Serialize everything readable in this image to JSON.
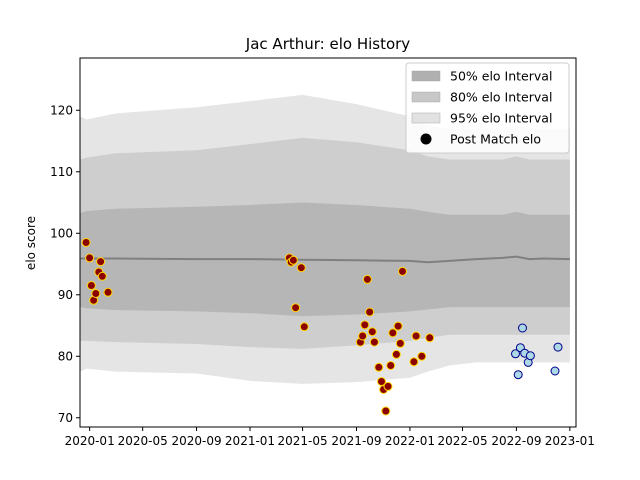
{
  "chart_data": {
    "type": "scatter",
    "title": "Jac Arthur: elo History",
    "xlabel": "",
    "ylabel": "elo score",
    "xlim": [
      "2019-12-10",
      "2023-01-15"
    ],
    "ylim": [
      68.5,
      128.5
    ],
    "x_ticks": [
      "2020-01",
      "2020-05",
      "2020-09",
      "2021-01",
      "2021-05",
      "2021-09",
      "2022-01",
      "2022-05",
      "2022-09",
      "2023-01"
    ],
    "y_ticks": [
      70,
      80,
      90,
      100,
      110,
      120
    ],
    "grid": false,
    "legend_position": "top-right",
    "legend": [
      {
        "label": "50% elo Interval",
        "kind": "band",
        "color": "#b0b0b0"
      },
      {
        "label": "80% elo Interval",
        "kind": "band",
        "color": "#c8c8c8"
      },
      {
        "label": "95% elo Interval",
        "kind": "band",
        "color": "#e2e2e2"
      },
      {
        "label": "Post Match elo",
        "kind": "marker",
        "color": "#000000"
      }
    ],
    "colors": {
      "band_50": "#b0b0b0",
      "band_80": "#c8c8c8",
      "band_95": "#e2e2e2",
      "mean_line": "#808080",
      "point_past_fill": "#8b0000",
      "point_past_edge": "#ffd700",
      "point_recent_fill": "#add8e6",
      "point_recent_edge": "#00008b"
    },
    "bands": {
      "x": [
        "2019-12-10",
        "2019-12-25",
        "2020-03-01",
        "2020-09-01",
        "2021-01-01",
        "2021-05-01",
        "2021-09-01",
        "2022-01-01",
        "2022-02-10",
        "2022-04-01",
        "2022-06-01",
        "2022-08-01",
        "2022-09-01",
        "2022-10-01",
        "2022-11-01",
        "2023-01-01"
      ],
      "mean": [
        95.9,
        95.9,
        95.9,
        95.8,
        95.8,
        95.7,
        95.6,
        95.5,
        95.3,
        95.5,
        95.8,
        96.0,
        96.2,
        95.8,
        95.9,
        95.8
      ],
      "p50_upper": [
        103.3,
        103.6,
        104.0,
        104.3,
        104.6,
        105.0,
        104.6,
        104.0,
        103.5,
        103.0,
        103.0,
        103.0,
        103.5,
        103.0,
        103.0,
        103.0
      ],
      "p50_lower": [
        88.0,
        87.8,
        87.5,
        87.3,
        87.0,
        86.5,
        86.8,
        87.3,
        87.6,
        88.0,
        88.0,
        88.0,
        88.0,
        88.0,
        88.0,
        88.0
      ],
      "p80_upper": [
        112.0,
        112.3,
        113.0,
        113.5,
        114.5,
        115.5,
        114.8,
        113.5,
        112.5,
        112.0,
        112.0,
        112.0,
        112.5,
        112.0,
        112.0,
        112.0
      ],
      "p80_lower": [
        82.5,
        82.5,
        82.3,
        82.0,
        81.5,
        81.2,
        81.8,
        82.5,
        83.0,
        83.5,
        83.5,
        83.5,
        83.5,
        83.5,
        83.5,
        83.5
      ],
      "p95_upper": [
        119.0,
        118.5,
        119.5,
        120.5,
        121.5,
        122.5,
        121.0,
        119.0,
        117.5,
        117.0,
        117.0,
        117.0,
        117.5,
        117.0,
        117.0,
        117.0
      ],
      "p95_lower": [
        77.5,
        78.0,
        77.5,
        77.2,
        76.0,
        75.5,
        75.8,
        76.5,
        77.5,
        78.5,
        79.0,
        79.0,
        79.0,
        79.0,
        79.0,
        79.0
      ]
    },
    "series": [
      {
        "name": "",
        "x": [
          "2019-12-24",
          "2020-01-01",
          "2020-01-05",
          "2020-01-10",
          "2020-01-15",
          "2020-01-22",
          "2020-01-26",
          "2020-01-30",
          "2020-02-12",
          "2021-04-01",
          "2021-04-05",
          "2021-04-10",
          "2021-04-15",
          "2021-04-28",
          "2021-05-05",
          "2021-09-10",
          "2021-09-15",
          "2021-09-20",
          "2021-09-26",
          "2021-10-01",
          "2021-10-07",
          "2021-10-12",
          "2021-10-22",
          "2021-10-28",
          "2021-11-02",
          "2021-11-07",
          "2021-11-12",
          "2021-11-18",
          "2021-11-23",
          "2021-12-01",
          "2021-12-05",
          "2021-12-10",
          "2021-12-15",
          "2022-01-10",
          "2022-01-15",
          "2022-01-28",
          "2022-02-15"
        ],
        "y": [
          98.5,
          96.0,
          91.5,
          89.1,
          90.2,
          93.7,
          95.4,
          93.0,
          90.4,
          96.0,
          95.3,
          95.6,
          87.9,
          94.4,
          84.8,
          82.3,
          83.3,
          85.1,
          92.5,
          87.2,
          84.0,
          82.3,
          78.2,
          75.9,
          74.6,
          71.1,
          75.1,
          78.5,
          83.8,
          80.3,
          84.9,
          82.1,
          93.8,
          79.1,
          83.3,
          80.0,
          83.0
        ],
        "style": "past"
      },
      {
        "name": "",
        "x": [
          "2022-08-30",
          "2022-09-05",
          "2022-09-10",
          "2022-09-15",
          "2022-09-20",
          "2022-09-28",
          "2022-10-03",
          "2022-11-28",
          "2022-12-05"
        ],
        "y": [
          80.4,
          77.0,
          81.4,
          84.6,
          80.5,
          79.0,
          80.1,
          77.6,
          81.5
        ],
        "style": "recent"
      }
    ]
  }
}
